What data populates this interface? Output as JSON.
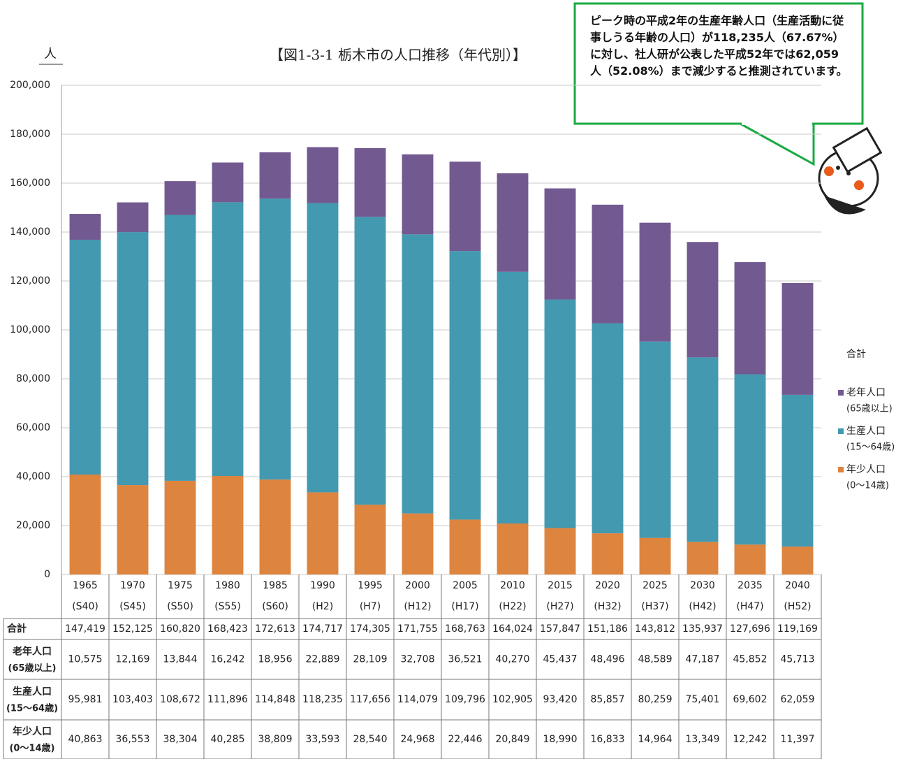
{
  "chart_data": {
    "type": "bar",
    "stacked": true,
    "title": "【図1-3-1 栃木市の人口推移（年代別）】",
    "y_unit_label": "人",
    "categories": [
      "1965",
      "1970",
      "1975",
      "1980",
      "1985",
      "1990",
      "1995",
      "2000",
      "2005",
      "2010",
      "2015",
      "2020",
      "2025",
      "2030",
      "2035",
      "2040"
    ],
    "category_sublabels": [
      "(S40)",
      "(S45)",
      "(S50)",
      "(S55)",
      "(S60)",
      "(H2)",
      "(H7)",
      "(H12)",
      "(H17)",
      "(H22)",
      "(H27)",
      "(H32)",
      "(H37)",
      "(H42)",
      "(H47)",
      "(H52)"
    ],
    "ylim": [
      0,
      200000
    ],
    "yticks": [
      0,
      {
        "value": 20000,
        "label": "20,000"
      },
      {
        "value": 40000,
        "label": "40,000"
      },
      {
        "value": 60000,
        "label": "60,000"
      },
      {
        "value": 80000,
        "label": "80,000"
      },
      {
        "value": 100000,
        "label": "100,000"
      },
      {
        "value": 120000,
        "label": "120,000"
      },
      {
        "value": 140000,
        "label": "140,000"
      },
      {
        "value": 160000,
        "label": "160,000"
      },
      {
        "value": 180000,
        "label": "180,000"
      },
      {
        "value": 200000,
        "label": "200,000"
      }
    ],
    "grid": true,
    "total_name": "合計",
    "total_labels": [
      "147,419",
      "152,125",
      "160,820",
      "168,423",
      "172,613",
      "174,717",
      "174,305",
      "171,755",
      "168,763",
      "164,024",
      "157,847",
      "151,186",
      "143,812",
      "135,937",
      "127,696",
      "119,169"
    ],
    "series": [
      {
        "name": "老年人口",
        "name_sub": "(65歳以上)",
        "color": "#725a91",
        "values": [
          10575,
          12169,
          13844,
          16242,
          18956,
          22889,
          28109,
          32708,
          36521,
          40270,
          45437,
          48496,
          48589,
          47187,
          45852,
          45713
        ],
        "value_labels": [
          "10,575",
          "12,169",
          "13,844",
          "16,242",
          "18,956",
          "22,889",
          "28,109",
          "32,708",
          "36,521",
          "40,270",
          "45,437",
          "48,496",
          "48,589",
          "47,187",
          "45,852",
          "45,713"
        ]
      },
      {
        "name": "生産人口",
        "name_sub": "(15～64歳)",
        "color": "#4299b0",
        "values": [
          95981,
          103403,
          108672,
          111896,
          114848,
          118235,
          117656,
          114079,
          109796,
          102905,
          93420,
          85857,
          80259,
          75401,
          69602,
          62059
        ],
        "value_labels": [
          "95,981",
          "103,403",
          "108,672",
          "111,896",
          "114,848",
          "118,235",
          "117,656",
          "114,079",
          "109,796",
          "102,905",
          "93,420",
          "85,857",
          "80,259",
          "75,401",
          "69,602",
          "62,059"
        ]
      },
      {
        "name": "年少人口",
        "name_sub": "(0～14歳)",
        "color": "#dd843f",
        "values": [
          40863,
          36553,
          38304,
          40285,
          38809,
          33593,
          28540,
          24968,
          22446,
          20849,
          18990,
          16833,
          14964,
          13349,
          12242,
          11397
        ],
        "value_labels": [
          "40,863",
          "36,553",
          "38,304",
          "40,285",
          "38,809",
          "33,593",
          "28,540",
          "24,968",
          "22,446",
          "20,849",
          "18,990",
          "16,833",
          "14,964",
          "13,349",
          "12,242",
          "11,397"
        ]
      }
    ],
    "annotation": "ピーク時の平成2年の生産年齢人口（生産活動に従事しうる年齢の人口）が118,235人（67.67%）に対し、社人研が公表した平成52年では62,059人（52.08%）まで減少すると推測されています。"
  }
}
